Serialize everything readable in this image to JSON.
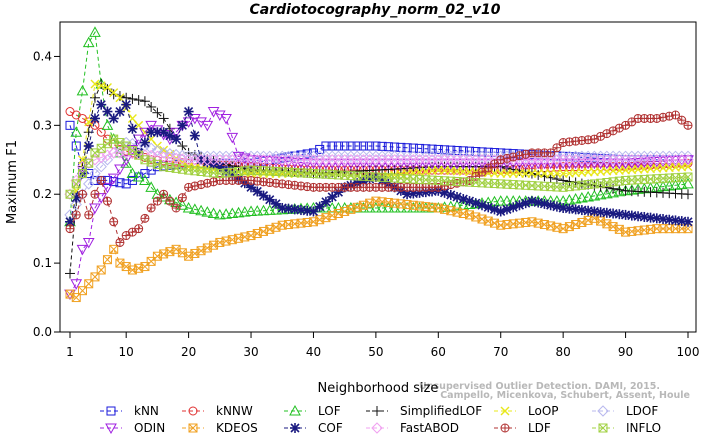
{
  "chart_data": {
    "type": "line",
    "title": "Cardiotocography_norm_02_v10",
    "xlabel": "Neighborhood size",
    "ylabel": "Maximum F1",
    "xlim": [
      1,
      100
    ],
    "ylim": [
      0,
      0.45
    ],
    "x_ticks": [
      "1",
      "10",
      "20",
      "30",
      "40",
      "50",
      "60",
      "70",
      "80",
      "90",
      "100"
    ],
    "y_ticks": [
      "0.0",
      "0.1",
      "0.2",
      "0.3",
      "0.4"
    ],
    "grid": false,
    "legend_position": "bottom",
    "watermark": [
      "Campello, Micenkova, Schubert, Assent, Houle",
      "Unsupervised Outlier Detection. DAMI, 2015."
    ],
    "series": [
      {
        "name": "kNN",
        "color": "#1a1adb",
        "marker": "square",
        "dash": "4,3",
        "points": [
          [
            1,
            0.3
          ],
          [
            2,
            0.27
          ],
          [
            3,
            0.24
          ],
          [
            5,
            0.22
          ],
          [
            7,
            0.22
          ],
          [
            10,
            0.215
          ],
          [
            15,
            0.24
          ],
          [
            20,
            0.245
          ],
          [
            30,
            0.245
          ],
          [
            40,
            0.26
          ],
          [
            42,
            0.27
          ],
          [
            50,
            0.27
          ],
          [
            60,
            0.265
          ],
          [
            70,
            0.26
          ],
          [
            80,
            0.255
          ],
          [
            90,
            0.25
          ],
          [
            100,
            0.25
          ]
        ]
      },
      {
        "name": "kNNW",
        "color": "#e03030",
        "marker": "circle",
        "dash": "4,3",
        "points": [
          [
            1,
            0.32
          ],
          [
            3,
            0.31
          ],
          [
            5,
            0.3
          ],
          [
            7,
            0.28
          ],
          [
            9,
            0.265
          ],
          [
            11,
            0.26
          ],
          [
            14,
            0.25
          ],
          [
            20,
            0.245
          ],
          [
            30,
            0.24
          ],
          [
            40,
            0.235
          ],
          [
            50,
            0.235
          ],
          [
            60,
            0.235
          ],
          [
            70,
            0.235
          ],
          [
            80,
            0.24
          ],
          [
            90,
            0.24
          ],
          [
            100,
            0.245
          ]
        ]
      },
      {
        "name": "LOF",
        "color": "#22c022",
        "marker": "triangle",
        "dash": "4,3",
        "points": [
          [
            1,
            0.16
          ],
          [
            2,
            0.29
          ],
          [
            3,
            0.35
          ],
          [
            4,
            0.42
          ],
          [
            5,
            0.435
          ],
          [
            6,
            0.36
          ],
          [
            7,
            0.3
          ],
          [
            9,
            0.26
          ],
          [
            11,
            0.23
          ],
          [
            13,
            0.22
          ],
          [
            15,
            0.2
          ],
          [
            20,
            0.18
          ],
          [
            25,
            0.17
          ],
          [
            30,
            0.175
          ],
          [
            40,
            0.18
          ],
          [
            50,
            0.18
          ],
          [
            60,
            0.18
          ],
          [
            70,
            0.19
          ],
          [
            80,
            0.19
          ],
          [
            90,
            0.205
          ],
          [
            100,
            0.215
          ]
        ]
      },
      {
        "name": "SimplifiedLOF",
        "color": "#111111",
        "marker": "plus",
        "dash": "4,3",
        "points": [
          [
            1,
            0.085
          ],
          [
            2,
            0.19
          ],
          [
            3,
            0.24
          ],
          [
            4,
            0.29
          ],
          [
            5,
            0.34
          ],
          [
            6,
            0.36
          ],
          [
            8,
            0.345
          ],
          [
            10,
            0.34
          ],
          [
            13,
            0.335
          ],
          [
            16,
            0.31
          ],
          [
            18,
            0.28
          ],
          [
            20,
            0.26
          ],
          [
            25,
            0.245
          ],
          [
            30,
            0.235
          ],
          [
            35,
            0.235
          ],
          [
            40,
            0.23
          ],
          [
            50,
            0.235
          ],
          [
            60,
            0.24
          ],
          [
            70,
            0.24
          ],
          [
            75,
            0.23
          ],
          [
            80,
            0.22
          ],
          [
            90,
            0.205
          ],
          [
            100,
            0.2
          ]
        ]
      },
      {
        "name": "LoOP",
        "color": "#e8e81a",
        "marker": "x",
        "dash": "4,3",
        "points": [
          [
            1,
            0.16
          ],
          [
            3,
            0.25
          ],
          [
            5,
            0.36
          ],
          [
            7,
            0.355
          ],
          [
            9,
            0.34
          ],
          [
            11,
            0.31
          ],
          [
            13,
            0.29
          ],
          [
            15,
            0.27
          ],
          [
            20,
            0.24
          ],
          [
            25,
            0.235
          ],
          [
            30,
            0.23
          ],
          [
            40,
            0.23
          ],
          [
            50,
            0.225
          ],
          [
            60,
            0.235
          ],
          [
            70,
            0.23
          ],
          [
            80,
            0.23
          ],
          [
            90,
            0.235
          ],
          [
            100,
            0.24
          ]
        ]
      },
      {
        "name": "LDOF",
        "color": "#b8b8ee",
        "marker": "diamond",
        "dash": "4,3",
        "points": [
          [
            1,
            0.17
          ],
          [
            3,
            0.2
          ],
          [
            5,
            0.23
          ],
          [
            8,
            0.26
          ],
          [
            10,
            0.275
          ],
          [
            13,
            0.27
          ],
          [
            16,
            0.26
          ],
          [
            20,
            0.255
          ],
          [
            30,
            0.255
          ],
          [
            40,
            0.255
          ],
          [
            50,
            0.255
          ],
          [
            60,
            0.255
          ],
          [
            70,
            0.255
          ],
          [
            80,
            0.255
          ],
          [
            90,
            0.255
          ],
          [
            100,
            0.255
          ]
        ]
      },
      {
        "name": "ODIN",
        "color": "#a020e0",
        "marker": "triangle-down",
        "dash": "4,3",
        "points": [
          [
            1,
            0.055
          ],
          [
            2,
            0.07
          ],
          [
            3,
            0.12
          ],
          [
            4,
            0.13
          ],
          [
            5,
            0.18
          ],
          [
            7,
            0.21
          ],
          [
            10,
            0.25
          ],
          [
            12,
            0.28
          ],
          [
            14,
            0.3
          ],
          [
            17,
            0.28
          ],
          [
            19,
            0.3
          ],
          [
            21,
            0.31
          ],
          [
            23,
            0.3
          ],
          [
            24,
            0.32
          ],
          [
            26,
            0.31
          ],
          [
            28,
            0.255
          ],
          [
            30,
            0.25
          ],
          [
            40,
            0.245
          ],
          [
            50,
            0.245
          ],
          [
            60,
            0.245
          ],
          [
            70,
            0.245
          ],
          [
            80,
            0.245
          ],
          [
            90,
            0.245
          ],
          [
            100,
            0.25
          ]
        ]
      },
      {
        "name": "KDEOS",
        "color": "#f0a020",
        "marker": "square-x",
        "dash": "4,3",
        "points": [
          [
            1,
            0.055
          ],
          [
            2,
            0.05
          ],
          [
            4,
            0.07
          ],
          [
            6,
            0.09
          ],
          [
            8,
            0.12
          ],
          [
            9,
            0.1
          ],
          [
            11,
            0.09
          ],
          [
            13,
            0.095
          ],
          [
            15,
            0.11
          ],
          [
            18,
            0.12
          ],
          [
            20,
            0.11
          ],
          [
            25,
            0.13
          ],
          [
            30,
            0.14
          ],
          [
            35,
            0.155
          ],
          [
            40,
            0.16
          ],
          [
            45,
            0.175
          ],
          [
            50,
            0.19
          ],
          [
            55,
            0.185
          ],
          [
            60,
            0.18
          ],
          [
            65,
            0.17
          ],
          [
            70,
            0.155
          ],
          [
            75,
            0.16
          ],
          [
            80,
            0.15
          ],
          [
            85,
            0.165
          ],
          [
            90,
            0.145
          ],
          [
            95,
            0.15
          ],
          [
            100,
            0.15
          ]
        ]
      },
      {
        "name": "COF",
        "color": "#1a1a80",
        "marker": "star",
        "dash": "4,3",
        "points": [
          [
            1,
            0.16
          ],
          [
            3,
            0.23
          ],
          [
            4,
            0.27
          ],
          [
            5,
            0.31
          ],
          [
            6,
            0.33
          ],
          [
            8,
            0.31
          ],
          [
            10,
            0.33
          ],
          [
            12,
            0.26
          ],
          [
            14,
            0.29
          ],
          [
            16,
            0.29
          ],
          [
            18,
            0.28
          ],
          [
            20,
            0.32
          ],
          [
            22,
            0.25
          ],
          [
            25,
            0.24
          ],
          [
            30,
            0.21
          ],
          [
            35,
            0.18
          ],
          [
            40,
            0.175
          ],
          [
            45,
            0.21
          ],
          [
            50,
            0.225
          ],
          [
            55,
            0.2
          ],
          [
            60,
            0.205
          ],
          [
            65,
            0.19
          ],
          [
            70,
            0.175
          ],
          [
            75,
            0.19
          ],
          [
            80,
            0.18
          ],
          [
            85,
            0.175
          ],
          [
            90,
            0.17
          ],
          [
            95,
            0.165
          ],
          [
            100,
            0.16
          ]
        ]
      },
      {
        "name": "FastABOD",
        "color": "#f0a0f0",
        "marker": "diamond",
        "dash": "4,3",
        "points": [
          [
            1,
            0.2
          ],
          [
            3,
            0.24
          ],
          [
            5,
            0.25
          ],
          [
            8,
            0.26
          ],
          [
            10,
            0.26
          ],
          [
            15,
            0.255
          ],
          [
            20,
            0.25
          ],
          [
            30,
            0.25
          ],
          [
            40,
            0.25
          ],
          [
            50,
            0.25
          ],
          [
            60,
            0.25
          ],
          [
            70,
            0.25
          ],
          [
            80,
            0.25
          ],
          [
            90,
            0.25
          ],
          [
            100,
            0.25
          ]
        ]
      },
      {
        "name": "LDF",
        "color": "#b03030",
        "marker": "circle-plus",
        "dash": "4,3",
        "points": [
          [
            1,
            0.15
          ],
          [
            2,
            0.17
          ],
          [
            3,
            0.2
          ],
          [
            4,
            0.17
          ],
          [
            5,
            0.2
          ],
          [
            6,
            0.22
          ],
          [
            7,
            0.19
          ],
          [
            8,
            0.16
          ],
          [
            9,
            0.13
          ],
          [
            10,
            0.14
          ],
          [
            12,
            0.15
          ],
          [
            14,
            0.18
          ],
          [
            16,
            0.2
          ],
          [
            18,
            0.18
          ],
          [
            20,
            0.21
          ],
          [
            25,
            0.22
          ],
          [
            30,
            0.22
          ],
          [
            40,
            0.21
          ],
          [
            50,
            0.21
          ],
          [
            60,
            0.21
          ],
          [
            65,
            0.22
          ],
          [
            70,
            0.25
          ],
          [
            75,
            0.26
          ],
          [
            78,
            0.26
          ],
          [
            80,
            0.275
          ],
          [
            85,
            0.28
          ],
          [
            90,
            0.3
          ],
          [
            92,
            0.31
          ],
          [
            95,
            0.31
          ],
          [
            98,
            0.315
          ],
          [
            100,
            0.3
          ]
        ]
      },
      {
        "name": "INFLO",
        "color": "#a0d040",
        "marker": "square-x",
        "dash": "4,3",
        "points": [
          [
            1,
            0.2
          ],
          [
            3,
            0.23
          ],
          [
            5,
            0.26
          ],
          [
            8,
            0.28
          ],
          [
            10,
            0.27
          ],
          [
            13,
            0.25
          ],
          [
            16,
            0.24
          ],
          [
            20,
            0.235
          ],
          [
            25,
            0.23
          ],
          [
            30,
            0.235
          ],
          [
            40,
            0.23
          ],
          [
            50,
            0.225
          ],
          [
            60,
            0.22
          ],
          [
            70,
            0.215
          ],
          [
            80,
            0.21
          ],
          [
            90,
            0.22
          ],
          [
            100,
            0.225
          ]
        ]
      }
    ]
  }
}
